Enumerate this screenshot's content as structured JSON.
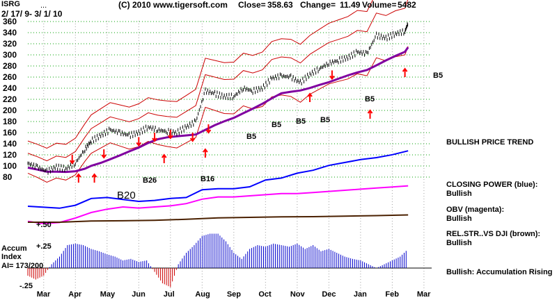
{
  "header": {
    "ticker": "ISRG",
    "dots": "...",
    "date_range": "2/ 17/ 9- 3/ 1/ 10",
    "copyright": "(C) 2010 www.tigersoft.com",
    "close_label": "Close=",
    "close": "358.63",
    "change_label": "Change=",
    "change": "11.49",
    "volume_label": "Volume=",
    "volume": "5482"
  },
  "right_panel": {
    "trend": "BULLISH PRICE TREND",
    "closing_power": "CLOSING POWER (blue):",
    "closing_power_status": "Bullish",
    "obv": "OBV (magenta):",
    "obv_status": "Bullish",
    "relstr": "REL.STR..VS DJI (brown):",
    "relstr_status": "Bullish",
    "accum_status": "Bullish: Accumulation Rising"
  },
  "left_panel": {
    "accum_title": "Accum",
    "accum_index": "Index",
    "ai_value": "AI= 173/200",
    "plus50": "+.50",
    "plus25": "+.25",
    "minus25": "-.25"
  },
  "colors": {
    "price": "#000000",
    "band": "#cc0000",
    "ma": "#8000a0",
    "closing_power": "#0000ff",
    "obv": "#ff00ff",
    "relstr": "#4a2000",
    "accum_pos": "#0000cc",
    "accum_neg": "#cc0000",
    "signal_red": "#ff0000",
    "signal_blue": "#0000ff"
  },
  "chart_data": {
    "type": "line",
    "title": "ISRG",
    "y_ticks": [
      360,
      340,
      320,
      300,
      280,
      260,
      240,
      220,
      200,
      180,
      160,
      140,
      120,
      100,
      80
    ],
    "ylim": [
      80,
      360
    ],
    "x_ticks": [
      "Mar",
      "Apr",
      "May",
      "Jun",
      "Jul",
      "Aug",
      "Sep",
      "Oct",
      "Nov",
      "Dec",
      "Jan",
      "Feb",
      "Mar"
    ],
    "price": {
      "x": [
        0,
        0.3,
        0.6,
        0.9,
        1.2,
        1.5,
        1.8,
        2.0,
        2.3,
        2.6,
        2.9,
        3.2,
        3.5,
        3.8,
        4.1,
        4.4,
        4.7,
        5.0,
        5.3,
        5.6,
        5.9,
        6.2,
        6.5,
        6.8,
        7.1,
        7.4,
        7.7,
        8.0,
        8.3,
        8.6,
        8.9,
        9.2,
        9.5,
        9.8,
        10.1,
        10.4,
        10.7,
        11.0,
        11.3,
        11.6,
        11.9,
        12.0
      ],
      "y": [
        105,
        98,
        90,
        98,
        95,
        105,
        130,
        145,
        155,
        165,
        160,
        155,
        160,
        170,
        165,
        162,
        160,
        170,
        180,
        235,
        230,
        225,
        225,
        240,
        235,
        240,
        258,
        262,
        260,
        250,
        265,
        275,
        285,
        290,
        295,
        305,
        302,
        335,
        330,
        338,
        342,
        358
      ]
    },
    "series": [
      {
        "name": "CLOSING POWER (blue)",
        "x": [
          0,
          0.5,
          1,
          1.5,
          2,
          2.5,
          3,
          3.5,
          4,
          4.5,
          5,
          5.5,
          6,
          6.5,
          7,
          7.5,
          8,
          8.5,
          9,
          9.5,
          10,
          10.5,
          11,
          11.5,
          12
        ],
        "values": [
          -5,
          -6,
          -7,
          -4,
          3,
          4,
          2,
          0,
          1,
          3,
          4,
          12,
          13,
          13,
          15,
          22,
          24,
          29,
          32,
          37,
          40,
          43,
          45,
          48,
          52
        ]
      },
      {
        "name": "OBV (magenta)",
        "x": [
          0,
          0.5,
          1,
          1.5,
          2,
          2.5,
          3,
          3.5,
          4,
          4.5,
          5,
          5.5,
          6,
          6.5,
          7,
          7.5,
          8,
          8.5,
          9,
          9.5,
          10,
          10.5,
          11,
          11.5,
          12
        ],
        "values": [
          -8,
          -10,
          -9,
          -5,
          0,
          3,
          5,
          4,
          5,
          6,
          8,
          12,
          14,
          14,
          15,
          16,
          17,
          17,
          18,
          19,
          20,
          21,
          22,
          23,
          24
        ]
      },
      {
        "name": "REL.STR..VS DJI (brown)",
        "x": [
          0,
          1,
          2,
          3,
          4,
          5,
          6,
          7,
          8,
          9,
          10,
          11,
          12
        ],
        "values": [
          1.0,
          1.0,
          1.05,
          1.06,
          1.08,
          1.12,
          1.18,
          1.2,
          1.22,
          1.23,
          1.25,
          1.27,
          1.3
        ]
      }
    ],
    "accumulation_index": {
      "x": [
        0,
        0.25,
        0.5,
        0.75,
        1,
        1.25,
        1.5,
        1.75,
        2,
        2.25,
        2.5,
        2.75,
        3,
        3.25,
        3.5,
        3.75,
        4,
        4.25,
        4.5,
        4.75,
        5,
        5.25,
        5.5,
        5.75,
        6,
        6.25,
        6.5,
        6.75,
        7,
        7.25,
        7.5,
        7.75,
        8,
        8.25,
        8.5,
        8.75,
        9,
        9.25,
        9.5,
        9.75,
        10,
        10.25,
        10.5,
        10.75,
        11,
        11.25,
        11.5,
        11.75,
        12
      ],
      "values": [
        -0.1,
        -0.15,
        -0.1,
        0.05,
        0.15,
        0.3,
        0.32,
        0.3,
        0.25,
        0.22,
        0.18,
        0.15,
        0.1,
        0.12,
        0.08,
        0.1,
        -0.05,
        -0.2,
        -0.25,
        0.05,
        0.2,
        0.3,
        0.42,
        0.45,
        0.45,
        0.35,
        0.2,
        0.12,
        0.25,
        0.3,
        0.28,
        0.32,
        0.3,
        0.28,
        0.32,
        0.25,
        0.3,
        0.22,
        0.25,
        0.2,
        0.15,
        0.12,
        0.1,
        0.05,
        0.0,
        0.05,
        0.1,
        0.15,
        0.25
      ]
    },
    "signals": {
      "red_down": [
        {
          "x": 1.4,
          "y": 120
        },
        {
          "x": 2.4,
          "y": 130
        },
        {
          "x": 3.5,
          "y": 152
        },
        {
          "x": 4.0,
          "y": 160
        },
        {
          "x": 4.5,
          "y": 165
        },
        {
          "x": 5.2,
          "y": 160
        },
        {
          "x": 5.7,
          "y": 175
        },
        {
          "x": 9.6,
          "y": 272
        }
      ],
      "red_up": [
        {
          "x": 1.6,
          "y": 85
        },
        {
          "x": 2.1,
          "y": 85
        },
        {
          "x": 4.3,
          "y": 120
        },
        {
          "x": 5.6,
          "y": 130
        },
        {
          "x": 8.9,
          "y": 230
        },
        {
          "x": 10.8,
          "y": 200
        },
        {
          "x": 11.9,
          "y": 275
        }
      ],
      "thin_up": [
        {
          "x": 9.1,
          "y": 175,
          "label": "B5"
        },
        {
          "x": 10.2,
          "y": 180,
          "label": "B5"
        },
        {
          "x": 10.6,
          "y": 175,
          "label": "B5"
        },
        {
          "x": 13.5,
          "y": 220,
          "label": "B5"
        },
        {
          "x": 15.8,
          "y": 260,
          "label": "B5"
        }
      ]
    },
    "band_labels": [
      "B5",
      "B5",
      "B5",
      "B5",
      "B5",
      "B26",
      "B16",
      "B20"
    ],
    "type_extra": "heatmap"
  }
}
